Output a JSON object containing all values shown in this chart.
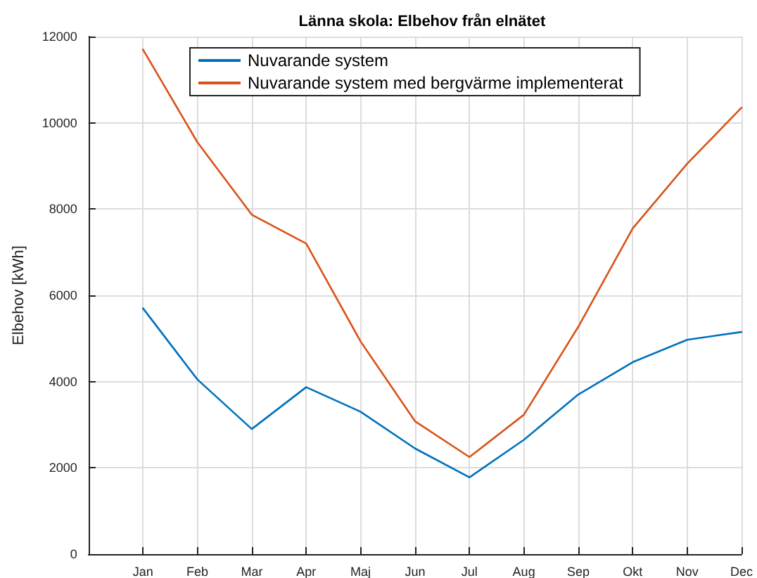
{
  "chart_data": {
    "type": "line",
    "title": "Länna skola: Elbehov från elnätet",
    "ylabel": "Elbehov [kWh]",
    "categories": [
      "Jan",
      "Feb",
      "Mar",
      "Apr",
      "Maj",
      "Jun",
      "Jul",
      "Aug",
      "Sep",
      "Okt",
      "Nov",
      "Dec"
    ],
    "series": [
      {
        "name": "Nuvarande system",
        "color": "#0072bd",
        "values": [
          5700,
          4050,
          2900,
          3870,
          3300,
          2450,
          1780,
          2650,
          3700,
          4450,
          4970,
          5150
        ]
      },
      {
        "name": "Nuvarande system med bergvärme implementerat",
        "color": "#d95319",
        "values": [
          11700,
          9550,
          7870,
          7200,
          4930,
          3080,
          2250,
          3230,
          5270,
          7550,
          9050,
          10350
        ]
      }
    ],
    "ylim": [
      0,
      12000
    ],
    "yticks": [
      0,
      2000,
      4000,
      6000,
      8000,
      10000,
      12000
    ],
    "grid": true,
    "legend": "top",
    "marker": "none",
    "line_style": "solid"
  }
}
